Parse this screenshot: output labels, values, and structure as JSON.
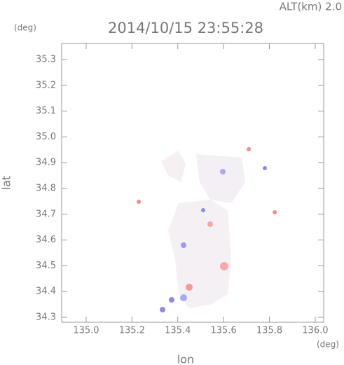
{
  "chart_data": {
    "type": "map",
    "title": "2014/10/15 23:55:28",
    "altitude_label": "ALT(km) 2.0",
    "y_unit": "(deg)",
    "x_unit": "(deg)",
    "xlabel": "lon",
    "ylabel": "lat",
    "xlim": [
      134.893,
      136.037
    ],
    "ylim": [
      34.281,
      35.3625
    ],
    "xticks": [
      {
        "value": 135,
        "label": "135.0"
      },
      135.2,
      135.4,
      135.6,
      135.8,
      {
        "value": 136,
        "label": "136.0"
      }
    ],
    "yticks": [
      34.3,
      34.4,
      34.5,
      34.6,
      34.7,
      34.8,
      34.9,
      {
        "value": 35,
        "label": "35.0"
      },
      35.1,
      35.2,
      35.3
    ]
  }
}
